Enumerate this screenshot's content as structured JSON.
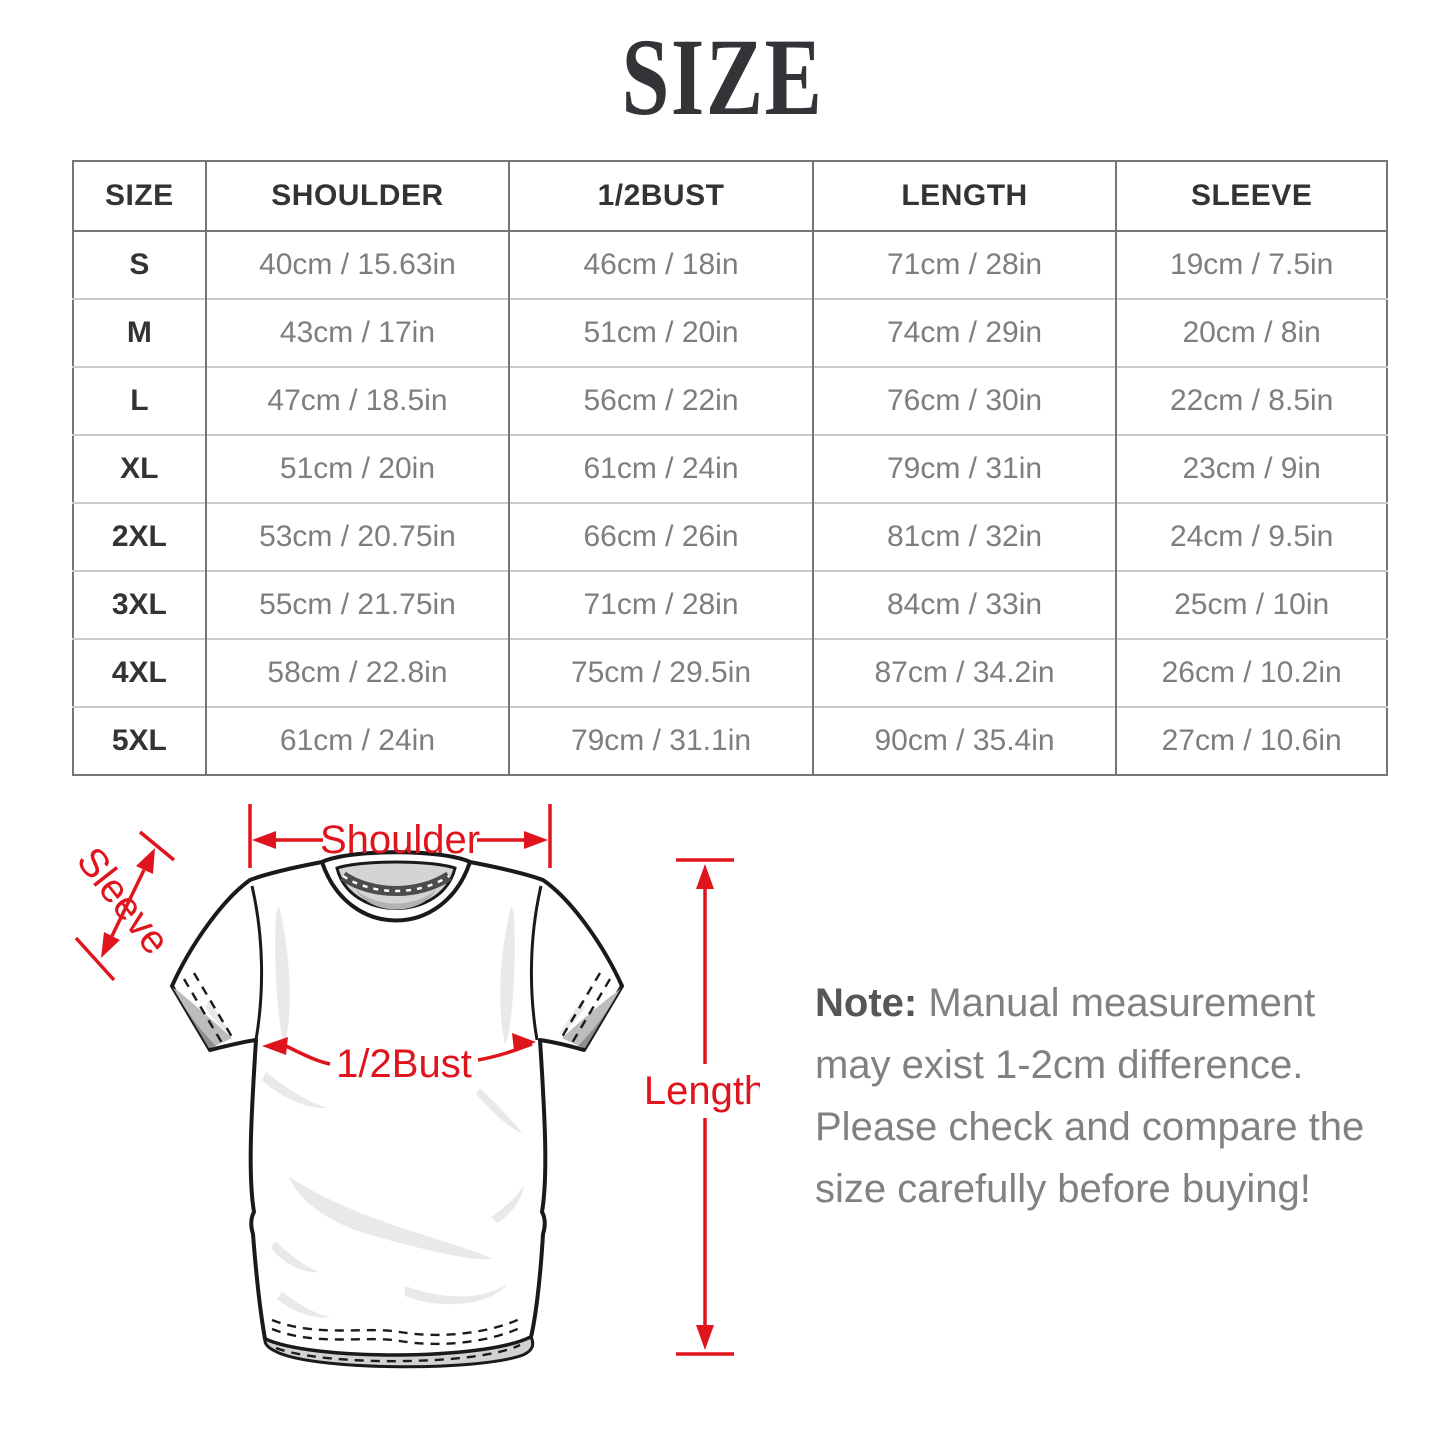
{
  "title": "SIZE",
  "colors": {
    "accent": "#e0141c",
    "heading_text": "#333333",
    "value_text": "#7e7e7e",
    "grid_dark": "#767676",
    "grid_light": "#cccccc"
  },
  "table": {
    "columns": [
      "SIZE",
      "SHOULDER",
      "1/2BUST",
      "LENGTH",
      "SLEEVE"
    ],
    "rows": [
      {
        "size": "S",
        "shoulder": "40cm / 15.63in",
        "bust": "46cm / 18in",
        "length": "71cm / 28in",
        "sleeve": "19cm / 7.5in"
      },
      {
        "size": "M",
        "shoulder": "43cm / 17in",
        "bust": "51cm / 20in",
        "length": "74cm / 29in",
        "sleeve": "20cm / 8in"
      },
      {
        "size": "L",
        "shoulder": "47cm / 18.5in",
        "bust": "56cm / 22in",
        "length": "76cm / 30in",
        "sleeve": "22cm / 8.5in"
      },
      {
        "size": "XL",
        "shoulder": "51cm / 20in",
        "bust": "61cm / 24in",
        "length": "79cm / 31in",
        "sleeve": "23cm / 9in"
      },
      {
        "size": "2XL",
        "shoulder": "53cm / 20.75in",
        "bust": "66cm / 26in",
        "length": "81cm / 32in",
        "sleeve": "24cm / 9.5in"
      },
      {
        "size": "3XL",
        "shoulder": "55cm / 21.75in",
        "bust": "71cm / 28in",
        "length": "84cm / 33in",
        "sleeve": "25cm / 10in"
      },
      {
        "size": "4XL",
        "shoulder": "58cm / 22.8in",
        "bust": "75cm / 29.5in",
        "length": "87cm / 34.2in",
        "sleeve": "26cm / 10.2in"
      },
      {
        "size": "5XL",
        "shoulder": "61cm / 24in",
        "bust": "79cm / 31.1in",
        "length": "90cm / 35.4in",
        "sleeve": "27cm / 10.6in"
      }
    ]
  },
  "diagram": {
    "labels": {
      "shoulder": "Shoulder",
      "sleeve": "Sleeve",
      "bust": "1/2Bust",
      "length": "Length"
    }
  },
  "note": {
    "label": "Note:",
    "body": " Manual measurement may exist 1-2cm difference. Please check and compare the size carefully before buying!"
  }
}
